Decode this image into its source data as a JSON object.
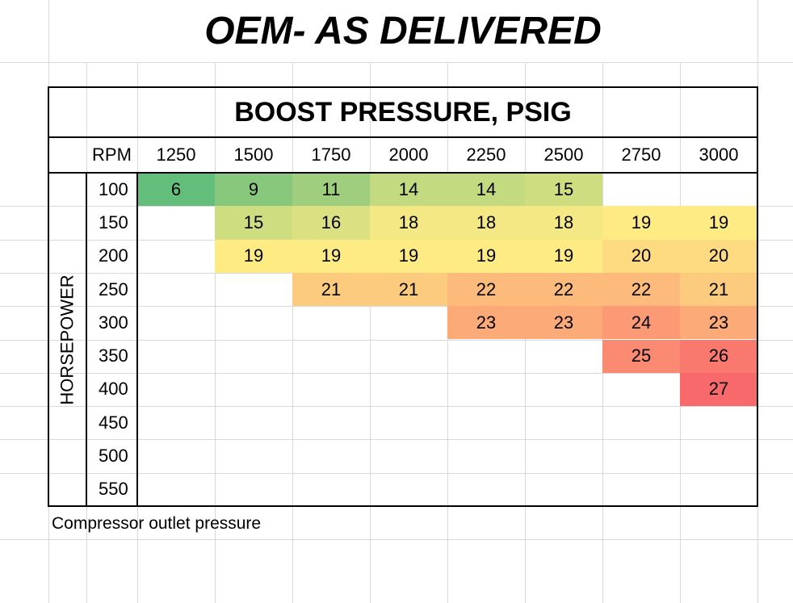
{
  "title": "OEM- AS DELIVERED",
  "table": {
    "header": "BOOST PRESSURE, PSIG",
    "corner": "RPM",
    "row_axis_label": "HORSEPOWER",
    "columns": [
      "1250",
      "1500",
      "1750",
      "2000",
      "2250",
      "2500",
      "2750",
      "3000"
    ],
    "rows": [
      {
        "label": "100",
        "cells": [
          6,
          9,
          11,
          14,
          14,
          15,
          null,
          null
        ]
      },
      {
        "label": "150",
        "cells": [
          null,
          15,
          16,
          18,
          18,
          18,
          19,
          19
        ]
      },
      {
        "label": "200",
        "cells": [
          null,
          19,
          19,
          19,
          19,
          19,
          20,
          20
        ]
      },
      {
        "label": "250",
        "cells": [
          null,
          null,
          21,
          21,
          22,
          22,
          22,
          21
        ]
      },
      {
        "label": "300",
        "cells": [
          null,
          null,
          null,
          null,
          23,
          23,
          24,
          23
        ]
      },
      {
        "label": "350",
        "cells": [
          null,
          null,
          null,
          null,
          null,
          null,
          25,
          26
        ]
      },
      {
        "label": "400",
        "cells": [
          null,
          null,
          null,
          null,
          null,
          null,
          null,
          27
        ]
      },
      {
        "label": "450",
        "cells": [
          null,
          null,
          null,
          null,
          null,
          null,
          null,
          null
        ]
      },
      {
        "label": "500",
        "cells": [
          null,
          null,
          null,
          null,
          null,
          null,
          null,
          null
        ]
      },
      {
        "label": "550",
        "cells": [
          null,
          null,
          null,
          null,
          null,
          null,
          null,
          null
        ]
      }
    ],
    "color_scale": [
      "#63be7b",
      "#ffeb84",
      "#f8696b"
    ]
  },
  "footnote": "Compressor outlet pressure"
}
